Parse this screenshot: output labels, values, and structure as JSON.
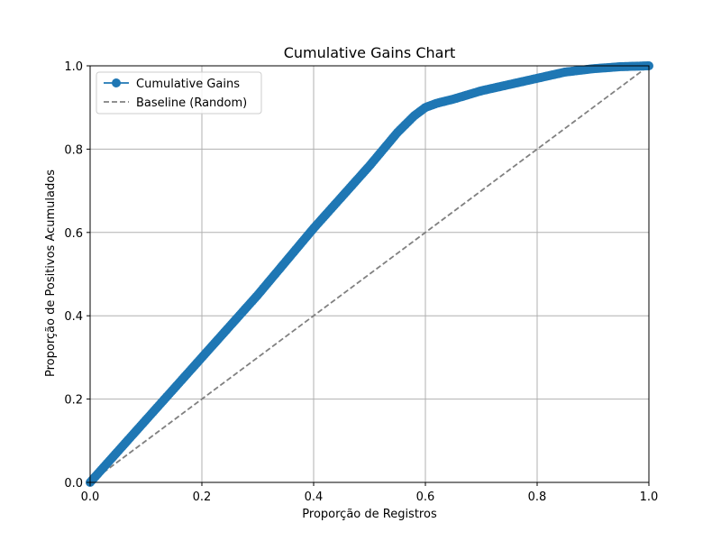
{
  "chart_data": {
    "type": "line",
    "title": "Cumulative Gains Chart",
    "xlabel": "Proporção de Registros",
    "ylabel": "Proporção de Positivos Acumulados",
    "xlim": [
      0.0,
      1.0
    ],
    "ylim": [
      0.0,
      1.0
    ],
    "xticks": [
      "0.0",
      "0.2",
      "0.4",
      "0.6",
      "0.8",
      "1.0"
    ],
    "yticks": [
      "0.0",
      "0.2",
      "0.4",
      "0.6",
      "0.8",
      "1.0"
    ],
    "grid": true,
    "legend_position": "upper-left",
    "series": [
      {
        "name": "Cumulative Gains",
        "color": "#1f77b4",
        "style": "solid-with-circle-markers",
        "x": [
          0.0,
          0.02,
          0.05,
          0.1,
          0.15,
          0.2,
          0.25,
          0.3,
          0.35,
          0.4,
          0.45,
          0.5,
          0.55,
          0.58,
          0.6,
          0.62,
          0.65,
          0.7,
          0.75,
          0.8,
          0.85,
          0.9,
          0.95,
          1.0
        ],
        "y": [
          0.0,
          0.03,
          0.075,
          0.15,
          0.225,
          0.3,
          0.375,
          0.45,
          0.53,
          0.61,
          0.685,
          0.76,
          0.84,
          0.88,
          0.9,
          0.91,
          0.92,
          0.94,
          0.955,
          0.97,
          0.985,
          0.993,
          0.998,
          1.0
        ]
      },
      {
        "name": "Baseline (Random)",
        "color": "#808080",
        "style": "dashed",
        "x": [
          0.0,
          1.0
        ],
        "y": [
          0.0,
          1.0
        ]
      }
    ]
  }
}
